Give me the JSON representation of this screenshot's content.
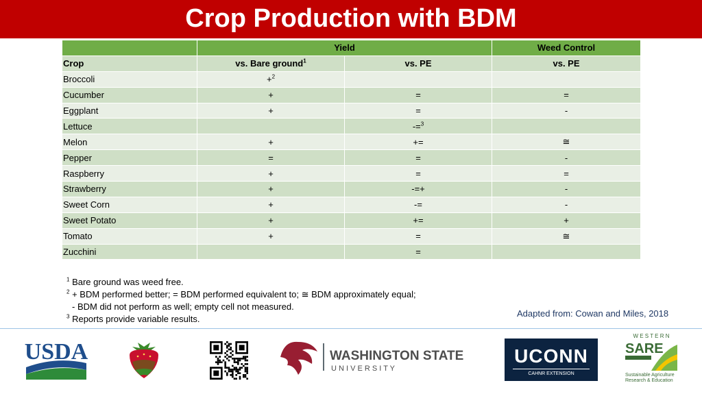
{
  "title": "Crop Production with BDM",
  "table": {
    "group_headers": [
      "Yield",
      "Weed Control"
    ],
    "sub_headers": {
      "crop": "Crop",
      "bare": "vs. Bare ground",
      "bare_sup": "1",
      "pe": "vs. PE",
      "wc": "vs. PE"
    },
    "rows": [
      {
        "crop": "Broccoli",
        "bare": "+",
        "bare_sup": "2",
        "pe": "",
        "pe_sup": "",
        "wc": ""
      },
      {
        "crop": "Cucumber",
        "bare": "+",
        "bare_sup": "",
        "pe": "=",
        "pe_sup": "",
        "wc": "="
      },
      {
        "crop": "Eggplant",
        "bare": "+",
        "bare_sup": "",
        "pe": "=",
        "pe_sup": "",
        "wc": "-"
      },
      {
        "crop": "Lettuce",
        "bare": "",
        "bare_sup": "",
        "pe": "-=",
        "pe_sup": "3",
        "wc": ""
      },
      {
        "crop": "Melon",
        "bare": "+",
        "bare_sup": "",
        "pe": "+=",
        "pe_sup": "",
        "wc": "≅"
      },
      {
        "crop": "Pepper",
        "bare": "=",
        "bare_sup": "",
        "pe": "=",
        "pe_sup": "",
        "wc": "-"
      },
      {
        "crop": "Raspberry",
        "bare": "+",
        "bare_sup": "",
        "pe": "=",
        "pe_sup": "",
        "wc": "="
      },
      {
        "crop": "Strawberry",
        "bare": "+",
        "bare_sup": "",
        "pe": "-=+",
        "pe_sup": "",
        "wc": "-"
      },
      {
        "crop": "Sweet Corn",
        "bare": "+",
        "bare_sup": "",
        "pe": "-=",
        "pe_sup": "",
        "wc": "-"
      },
      {
        "crop": "Sweet Potato",
        "bare": "+",
        "bare_sup": "",
        "pe": "+=",
        "pe_sup": "",
        "wc": "+"
      },
      {
        "crop": "Tomato",
        "bare": "+",
        "bare_sup": "",
        "pe": "=",
        "pe_sup": "",
        "wc": "≅"
      },
      {
        "crop": "Zucchini",
        "bare": "",
        "bare_sup": "",
        "pe": "=",
        "pe_sup": "",
        "wc": ""
      }
    ]
  },
  "notes": {
    "n1_sup": "1",
    "n1": "Bare ground was weed free.",
    "n2_sup": "2",
    "n2": "+ BDM performed better; = BDM performed equivalent to; ≅ BDM approximately equal;",
    "n2b": "- BDM did not perform as well; empty cell not measured.",
    "n3_sup": "3",
    "n3": "Reports provide variable results."
  },
  "credit": "Adapted from: Cowan and Miles, 2018",
  "logos": {
    "usda": "USDA",
    "wsu_line1": "WASHINGTON STATE",
    "wsu_line2": "U N I V E R S I T Y",
    "uconn": "UCONN",
    "uconn_sub": "CAHNR EXTENSION",
    "sare_top": "W E S T E R N",
    "sare": "SARE",
    "sare_sub1": "Sustainable Agriculture",
    "sare_sub2": "Research & Education"
  },
  "colors": {
    "title_bar": "#c00000",
    "header_green": "#70ad47",
    "row_dark": "#cfdfc6",
    "row_light": "#e9efe5"
  }
}
